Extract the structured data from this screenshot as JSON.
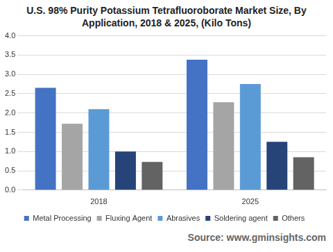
{
  "chart_data": {
    "type": "bar",
    "title": "U.S. 98% Purity Potassium Tetrafluoroborate Market Size, By Application, 2018 & 2025, (Kilo Tons)",
    "source": "Source: www.gminsights.com",
    "categories": [
      "2018",
      "2025"
    ],
    "series": [
      {
        "name": "Metal Processing",
        "color": "#4472c4",
        "values": [
          2.65,
          3.38
        ]
      },
      {
        "name": "Fluxing Agent",
        "color": "#a5a5a5",
        "values": [
          1.72,
          2.28
        ]
      },
      {
        "name": "Abrasives",
        "color": "#5b9bd5",
        "values": [
          2.1,
          2.75
        ]
      },
      {
        "name": "Soldering agent",
        "color": "#264478",
        "values": [
          1.0,
          1.25
        ]
      },
      {
        "name": "Others",
        "color": "#636363",
        "values": [
          0.73,
          0.85
        ]
      }
    ],
    "ylim": [
      0,
      4
    ],
    "yticks": [
      {
        "value": 0,
        "label": "0.0"
      },
      0.5,
      {
        "value": 1,
        "label": "1.0"
      },
      1.5,
      {
        "value": 2,
        "label": "2.0"
      },
      2.5,
      {
        "value": 3,
        "label": "3.0"
      },
      3.5,
      {
        "value": 4,
        "label": "4.0"
      }
    ],
    "grid": true,
    "legend": "bottom"
  }
}
